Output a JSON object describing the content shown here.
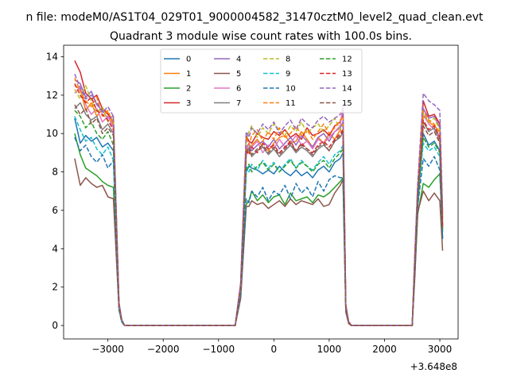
{
  "chart_data": {
    "type": "line",
    "suptitle": "n file: modeM0/AS1T04_029T01_9000004582_31470cztM0_level2_quad_clean.evt",
    "title": "Quadrant 3 module wise count rates with 100.0s bins.",
    "xlabel": "",
    "ylabel": "",
    "x_offset_label": "+3.648e8",
    "xlim": [
      -3800,
      3330
    ],
    "ylim": [
      -0.7,
      14.6
    ],
    "xticks": [
      -3000,
      -2000,
      -1000,
      0,
      1000,
      2000,
      3000
    ],
    "xtick_labels": [
      "−3000",
      "−2000",
      "−1000",
      "0",
      "1000",
      "2000",
      "3000"
    ],
    "yticks": [
      0,
      2,
      4,
      6,
      8,
      10,
      12,
      14
    ],
    "ytick_labels": [
      "0",
      "2",
      "4",
      "6",
      "8",
      "10",
      "12",
      "14"
    ],
    "legend_loc": "upper center",
    "x": [
      -3600,
      -3500,
      -3400,
      -3300,
      -3200,
      -3100,
      -3000,
      -2900,
      -2800,
      -2750,
      -2700,
      -2600,
      -2000,
      -1000,
      -700,
      -600,
      -500,
      -450,
      -400,
      -300,
      -200,
      -100,
      0,
      100,
      200,
      300,
      400,
      500,
      600,
      700,
      800,
      900,
      1000,
      1100,
      1200,
      1250,
      1300,
      1350,
      1400,
      2500,
      2550,
      2600,
      2700,
      2800,
      2900,
      3000,
      3050
    ],
    "series": [
      {
        "name": "0",
        "color": "#1f77b4",
        "dash": "solid",
        "values": [
          10.8,
          9.5,
          9.9,
          9.6,
          9.8,
          9.3,
          9.5,
          9.1,
          1.0,
          0.3,
          0,
          0,
          0,
          0,
          0,
          1.8,
          8.0,
          8.3,
          8.2,
          8.1,
          7.9,
          8.1,
          7.9,
          8.3,
          8.0,
          7.8,
          8.1,
          7.8,
          8.0,
          7.7,
          8.1,
          8.3,
          8.0,
          8.5,
          8.7,
          9.0,
          0.9,
          0.2,
          0,
          0,
          3.1,
          6.2,
          10.0,
          9.4,
          9.6,
          9.1,
          4.5
        ]
      },
      {
        "name": "1",
        "color": "#ff7f0e",
        "dash": "solid",
        "values": [
          12.5,
          12.3,
          11.2,
          11.6,
          10.9,
          11.3,
          11.1,
          10.4,
          1.1,
          0.3,
          0,
          0,
          0,
          0,
          0,
          2.1,
          9.3,
          9.0,
          9.4,
          9.7,
          9.3,
          9.1,
          9.5,
          9.8,
          9.9,
          9.5,
          9.6,
          10.1,
          9.7,
          9.3,
          9.8,
          9.5,
          10.0,
          9.7,
          10.2,
          10.0,
          1.0,
          0.2,
          0,
          0,
          3.6,
          7.0,
          10.9,
          10.6,
          10.4,
          10.1,
          5.2
        ]
      },
      {
        "name": "2",
        "color": "#2ca02c",
        "dash": "solid",
        "values": [
          10.0,
          8.9,
          8.2,
          8.0,
          7.8,
          7.5,
          7.3,
          7.2,
          0.9,
          0.2,
          0,
          0,
          0,
          0,
          0,
          1.6,
          6.3,
          6.5,
          7.0,
          6.5,
          6.8,
          6.4,
          6.7,
          6.8,
          6.3,
          6.9,
          6.5,
          6.6,
          6.7,
          6.4,
          6.8,
          6.7,
          6.9,
          7.2,
          7.5,
          7.7,
          0.8,
          0.2,
          0,
          0,
          2.8,
          5.8,
          7.4,
          7.2,
          7.6,
          7.9,
          4.9
        ]
      },
      {
        "name": "3",
        "color": "#d62728",
        "dash": "solid",
        "values": [
          13.8,
          13.2,
          12.1,
          11.8,
          12.0,
          11.3,
          11.0,
          10.6,
          1.2,
          0.3,
          0,
          0,
          0,
          0,
          0,
          2.2,
          9.9,
          9.6,
          9.5,
          10.0,
          9.8,
          9.7,
          10.1,
          9.9,
          10.2,
          9.8,
          10.0,
          9.7,
          10.3,
          9.9,
          10.0,
          10.2,
          9.9,
          10.4,
          10.6,
          11.0,
          1.1,
          0.2,
          0,
          0,
          3.8,
          7.2,
          11.7,
          10.9,
          11.0,
          10.5,
          5.8
        ]
      },
      {
        "name": "4",
        "color": "#9467bd",
        "dash": "solid",
        "values": [
          12.8,
          12.6,
          11.9,
          12.2,
          11.5,
          11.2,
          10.8,
          10.9,
          1.1,
          0.3,
          0,
          0,
          0,
          0,
          0,
          2.0,
          9.2,
          9.5,
          9.1,
          9.4,
          9.6,
          9.3,
          9.7,
          9.2,
          9.5,
          9.8,
          9.4,
          9.9,
          9.6,
          9.3,
          9.8,
          10.0,
          9.6,
          10.1,
          10.3,
          10.6,
          1.0,
          0.2,
          0,
          0,
          3.7,
          7.1,
          11.3,
          10.8,
          10.9,
          10.3,
          5.6
        ]
      },
      {
        "name": "5",
        "color": "#8c564b",
        "dash": "solid",
        "values": [
          8.7,
          7.3,
          7.7,
          7.4,
          7.2,
          7.3,
          6.7,
          6.6,
          0.8,
          0.2,
          0,
          0,
          0,
          0,
          0,
          1.4,
          6.2,
          6.2,
          6.5,
          6.3,
          6.4,
          6.1,
          6.3,
          6.5,
          6.2,
          6.6,
          6.3,
          6.5,
          6.4,
          6.3,
          6.6,
          6.2,
          6.3,
          6.9,
          7.3,
          7.6,
          0.7,
          0.1,
          0,
          0,
          2.6,
          5.9,
          7.0,
          6.5,
          6.9,
          6.5,
          3.9
        ]
      },
      {
        "name": "6",
        "color": "#e377c2",
        "dash": "solid",
        "values": [
          12.1,
          12.4,
          11.5,
          11.0,
          11.3,
          10.6,
          10.9,
          10.3,
          1.0,
          0.3,
          0,
          0,
          0,
          0,
          0,
          2.0,
          9.4,
          9.1,
          9.3,
          9.6,
          9.0,
          9.4,
          9.2,
          9.7,
          9.3,
          9.5,
          9.9,
          9.4,
          9.6,
          9.2,
          9.7,
          9.5,
          9.8,
          10.1,
          10.4,
          11.5,
          1.0,
          0.2,
          0,
          0,
          3.5,
          6.9,
          11.0,
          10.5,
          10.2,
          9.9,
          5.3
        ]
      },
      {
        "name": "7",
        "color": "#7f7f7f",
        "dash": "solid",
        "values": [
          11.3,
          11.6,
          11.0,
          10.7,
          10.9,
          10.2,
          10.5,
          10.0,
          1.0,
          0.3,
          0,
          0,
          0,
          0,
          0,
          1.9,
          8.9,
          9.2,
          8.8,
          9.1,
          9.3,
          8.9,
          9.2,
          8.8,
          9.1,
          9.4,
          9.0,
          9.3,
          9.1,
          8.8,
          9.2,
          9.4,
          9.1,
          9.6,
          9.8,
          10.1,
          0.9,
          0.2,
          0,
          0,
          3.4,
          6.8,
          10.6,
          10.1,
          10.3,
          9.6,
          5.0
        ]
      },
      {
        "name": "8",
        "color": "#bcbd22",
        "dash": "dashed",
        "values": [
          12.3,
          11.8,
          12.5,
          11.7,
          11.1,
          11.4,
          10.6,
          10.8,
          1.1,
          0.3,
          0,
          0,
          0,
          0,
          0,
          2.1,
          9.6,
          10.1,
          10.4,
          9.8,
          10.3,
          10.0,
          10.5,
          10.2,
          9.9,
          10.4,
          10.1,
          10.6,
          10.0,
          10.3,
          10.5,
          10.1,
          10.4,
          10.8,
          10.2,
          10.5,
          1.0,
          0.2,
          0,
          0,
          3.7,
          7.1,
          11.1,
          10.6,
          10.8,
          10.2,
          5.5
        ]
      },
      {
        "name": "9",
        "color": "#17becf",
        "dash": "dashed",
        "values": [
          10.9,
          10.2,
          9.6,
          9.8,
          9.2,
          8.9,
          9.3,
          8.6,
          0.9,
          0.2,
          0,
          0,
          0,
          0,
          0,
          1.8,
          8.3,
          8.0,
          8.4,
          8.1,
          8.6,
          8.2,
          8.5,
          8.0,
          8.4,
          8.7,
          8.2,
          8.6,
          8.3,
          8.1,
          8.5,
          8.8,
          8.4,
          8.9,
          9.1,
          9.4,
          0.9,
          0.2,
          0,
          0,
          3.2,
          6.5,
          9.5,
          9.1,
          9.3,
          8.8,
          4.8
        ]
      },
      {
        "name": "10",
        "color": "#1f77b4",
        "dash": "dashed",
        "values": [
          9.8,
          9.1,
          9.4,
          8.8,
          8.5,
          8.9,
          8.2,
          8.6,
          0.9,
          0.2,
          0,
          0,
          0,
          0,
          0,
          1.6,
          6.6,
          6.4,
          7.0,
          6.7,
          7.2,
          6.5,
          7.0,
          6.8,
          7.3,
          6.6,
          7.4,
          6.9,
          7.2,
          6.7,
          7.5,
          7.0,
          7.6,
          7.8,
          7.7,
          7.7,
          0.8,
          0.2,
          0,
          0,
          3.0,
          6.2,
          8.7,
          8.3,
          8.8,
          8.1,
          4.6
        ]
      },
      {
        "name": "11",
        "color": "#ff7f0e",
        "dash": "dashed",
        "values": [
          12.9,
          12.2,
          11.7,
          11.4,
          11.9,
          10.9,
          11.2,
          10.5,
          1.1,
          0.3,
          0,
          0,
          0,
          0,
          0,
          2.0,
          9.8,
          9.4,
          9.9,
          10.2,
          9.6,
          10.1,
          9.7,
          10.3,
          9.8,
          10.0,
          10.4,
          9.9,
          10.2,
          9.7,
          10.1,
          10.5,
          10.0,
          10.3,
          10.7,
          10.9,
          1.0,
          0.2,
          0,
          0,
          3.6,
          7.0,
          11.2,
          10.7,
          10.5,
          10.0,
          5.4
        ]
      },
      {
        "name": "12",
        "color": "#2ca02c",
        "dash": "dashed",
        "values": [
          11.2,
          10.9,
          10.3,
          10.6,
          10.0,
          9.7,
          10.1,
          9.4,
          1.0,
          0.3,
          0,
          0,
          0,
          0,
          0,
          1.9,
          8.1,
          8.4,
          8.0,
          8.3,
          8.5,
          8.1,
          8.4,
          8.0,
          8.3,
          8.6,
          8.2,
          8.5,
          8.3,
          8.0,
          8.4,
          8.6,
          8.2,
          8.7,
          9.0,
          9.2,
          0.9,
          0.2,
          0,
          0,
          3.3,
          6.6,
          9.8,
          9.3,
          9.5,
          9.0,
          4.9
        ]
      },
      {
        "name": "13",
        "color": "#d62728",
        "dash": "dashed",
        "values": [
          12.6,
          12.0,
          11.6,
          11.9,
          11.2,
          11.0,
          10.7,
          10.2,
          1.1,
          0.3,
          0,
          0,
          0,
          0,
          0,
          2.0,
          9.1,
          8.9,
          9.3,
          9.0,
          9.5,
          9.2,
          9.4,
          9.0,
          9.3,
          9.6,
          9.1,
          9.5,
          9.2,
          9.0,
          9.4,
          9.6,
          9.3,
          9.7,
          10.0,
          10.2,
          1.0,
          0.2,
          0,
          0,
          3.6,
          7.0,
          10.7,
          10.2,
          10.4,
          9.8,
          5.2
        ]
      },
      {
        "name": "14",
        "color": "#9467bd",
        "dash": "dashed",
        "values": [
          13.1,
          12.4,
          11.8,
          12.0,
          11.6,
          11.1,
          11.4,
          10.9,
          1.2,
          0.3,
          0,
          0,
          0,
          0,
          0,
          2.2,
          10.1,
          9.8,
          10.3,
          10.0,
          10.5,
          10.2,
          10.6,
          10.0,
          10.4,
          10.7,
          10.2,
          10.8,
          10.5,
          10.3,
          10.7,
          10.9,
          10.6,
          10.8,
          11.0,
          11.3,
          1.1,
          0.2,
          0,
          0,
          3.9,
          7.4,
          12.1,
          11.7,
          11.5,
          11.2,
          6.0
        ]
      },
      {
        "name": "15",
        "color": "#8c564b",
        "dash": "dashed",
        "values": [
          11.5,
          11.0,
          11.3,
          10.5,
          10.8,
          10.0,
          10.3,
          9.9,
          1.0,
          0.3,
          0,
          0,
          0,
          0,
          0,
          1.9,
          9.0,
          9.3,
          8.9,
          9.2,
          9.4,
          9.0,
          9.3,
          8.9,
          9.2,
          9.5,
          9.1,
          9.4,
          9.2,
          8.9,
          9.3,
          9.5,
          9.1,
          9.6,
          9.9,
          10.1,
          0.9,
          0.2,
          0,
          0,
          3.4,
          6.8,
          10.4,
          9.9,
          10.1,
          9.5,
          5.1
        ]
      }
    ]
  }
}
